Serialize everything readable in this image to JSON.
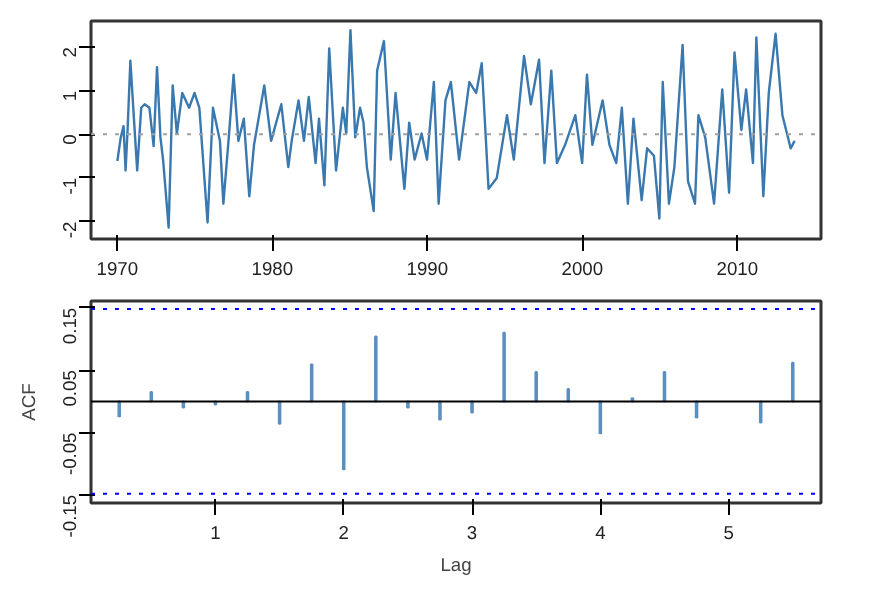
{
  "chart_data": [
    {
      "type": "line",
      "x": [
        1970.0,
        1970.22,
        1970.4,
        1970.53,
        1970.66,
        1970.84,
        1971.1,
        1971.28,
        1971.54,
        1971.76,
        1972.07,
        1972.34,
        1972.56,
        1972.78,
        1972.95,
        1973.31,
        1973.57,
        1973.84,
        1974.19,
        1974.63,
        1974.98,
        1975.29,
        1975.82,
        1976.17,
        1976.62,
        1976.84,
        1977.19,
        1977.5,
        1977.81,
        1978.16,
        1978.51,
        1978.82,
        1979.48,
        1979.92,
        1980.58,
        1981.03,
        1981.25,
        1981.69,
        1982.04,
        1982.35,
        1982.79,
        1983.01,
        1983.36,
        1983.67,
        1984.11,
        1984.55,
        1984.77,
        1985.04,
        1985.35,
        1985.66,
        1985.88,
        1986.1,
        1986.54,
        1986.76,
        1987.2,
        1987.64,
        1987.95,
        1988.52,
        1988.83,
        1989.18,
        1989.63,
        1989.98,
        1990.42,
        1990.73,
        1991.17,
        1991.52,
        1992.05,
        1992.71,
        1993.15,
        1993.51,
        1993.95,
        1994.48,
        1995.14,
        1995.58,
        1996.24,
        1996.68,
        1997.21,
        1997.56,
        1998.0,
        1998.36,
        1998.89,
        1999.55,
        1999.99,
        2000.3,
        2000.65,
        2001.31,
        2001.75,
        2002.19,
        2002.55,
        2002.94,
        2003.3,
        2003.83,
        2004.18,
        2004.62,
        2004.97,
        2005.19,
        2005.59,
        2005.94,
        2006.47,
        2006.82,
        2007.27,
        2007.49,
        2007.93,
        2008.5,
        2009.03,
        2009.47,
        2009.82,
        2010.26,
        2010.57,
        2011.01,
        2011.23,
        2011.68,
        2012.03,
        2012.47,
        2012.91,
        2013.44,
        2013.7
      ],
      "series": [
        {
          "color": "#3a78b0",
          "values": [
            -0.61,
            -0.07,
            0.19,
            -0.83,
            0.1,
            1.69,
            0.19,
            -0.83,
            0.61,
            0.69,
            0.61,
            -0.27,
            1.54,
            -0.07,
            -0.58,
            -2.14,
            1.12,
            0.02,
            0.95,
            0.61,
            0.95,
            0.61,
            -2.02,
            0.61,
            -0.15,
            -1.59,
            -0.07,
            1.37,
            -0.15,
            0.36,
            -1.42,
            -0.24,
            1.12,
            -0.15,
            0.69,
            -0.75,
            -0.15,
            0.78,
            -0.15,
            0.86,
            -0.66,
            0.36,
            -1.17,
            1.97,
            -0.83,
            0.61,
            0.02,
            2.39,
            -0.07,
            0.61,
            0.27,
            -0.75,
            -1.76,
            1.46,
            2.14,
            -0.58,
            0.95,
            -1.25,
            0.27,
            -0.58,
            0.02,
            -0.58,
            1.2,
            -1.59,
            0.78,
            1.2,
            -0.58,
            1.2,
            0.95,
            1.63,
            -1.25,
            -1.0,
            0.44,
            -0.58,
            1.8,
            0.69,
            1.71,
            -0.66,
            1.46,
            -0.66,
            -0.24,
            0.44,
            -0.66,
            1.37,
            -0.24,
            0.78,
            -0.24,
            -0.66,
            0.61,
            -1.59,
            0.36,
            -1.51,
            -0.32,
            -0.49,
            -1.93,
            1.2,
            -1.59,
            -0.75,
            2.05,
            -1.08,
            -1.59,
            0.44,
            -0.07,
            -1.59,
            1.03,
            -1.34,
            1.88,
            0.1,
            1.03,
            -0.66,
            2.22,
            -1.42,
            0.95,
            2.31,
            0.44,
            -0.32,
            -0.15
          ]
        }
      ],
      "xlim": [
        1968.3,
        2015.4
      ],
      "ylim": [
        -2.4,
        2.6
      ],
      "xticks": [
        1970,
        1980,
        1990,
        2000,
        2010
      ],
      "yticks": [
        -2,
        -1,
        0,
        1,
        2
      ],
      "ref_lines": [
        {
          "axis": "y",
          "value": 0,
          "color": "#a0a0a0",
          "line_style": "dotted"
        }
      ],
      "line_style": "solid",
      "grid": false
    },
    {
      "type": "bar",
      "x": [
        0.25,
        0.5,
        0.75,
        1.0,
        1.25,
        1.5,
        1.75,
        2.0,
        2.25,
        2.5,
        2.75,
        3.0,
        3.25,
        3.5,
        3.75,
        4.0,
        4.25,
        4.5,
        4.75,
        5.0,
        5.25,
        5.5
      ],
      "values": [
        -0.024,
        0.015,
        -0.01,
        -0.005,
        0.015,
        -0.036,
        0.059,
        -0.109,
        0.104,
        -0.01,
        -0.029,
        -0.018,
        0.11,
        0.047,
        0.02,
        -0.051,
        0.005,
        0.047,
        -0.026,
        null,
        -0.034,
        0.062
      ],
      "color": "#5b8fbf",
      "xlim": [
        0.03,
        5.72
      ],
      "ylim": [
        -0.163,
        0.161
      ],
      "xticks": [
        1,
        2,
        3,
        4,
        5
      ],
      "yticks": [
        -0.15,
        -0.05,
        0.05,
        0.15
      ],
      "xlabel": "Lag",
      "ylabel": "ACF",
      "ref_lines": [
        {
          "axis": "y",
          "value": 0,
          "color": "#000000",
          "line_style": "solid"
        },
        {
          "axis": "y",
          "value": 0.148,
          "color": "#0000ff",
          "line_style": "dotted"
        },
        {
          "axis": "y",
          "value": -0.148,
          "color": "#0000ff",
          "line_style": "dotted"
        }
      ],
      "grid": false
    }
  ]
}
